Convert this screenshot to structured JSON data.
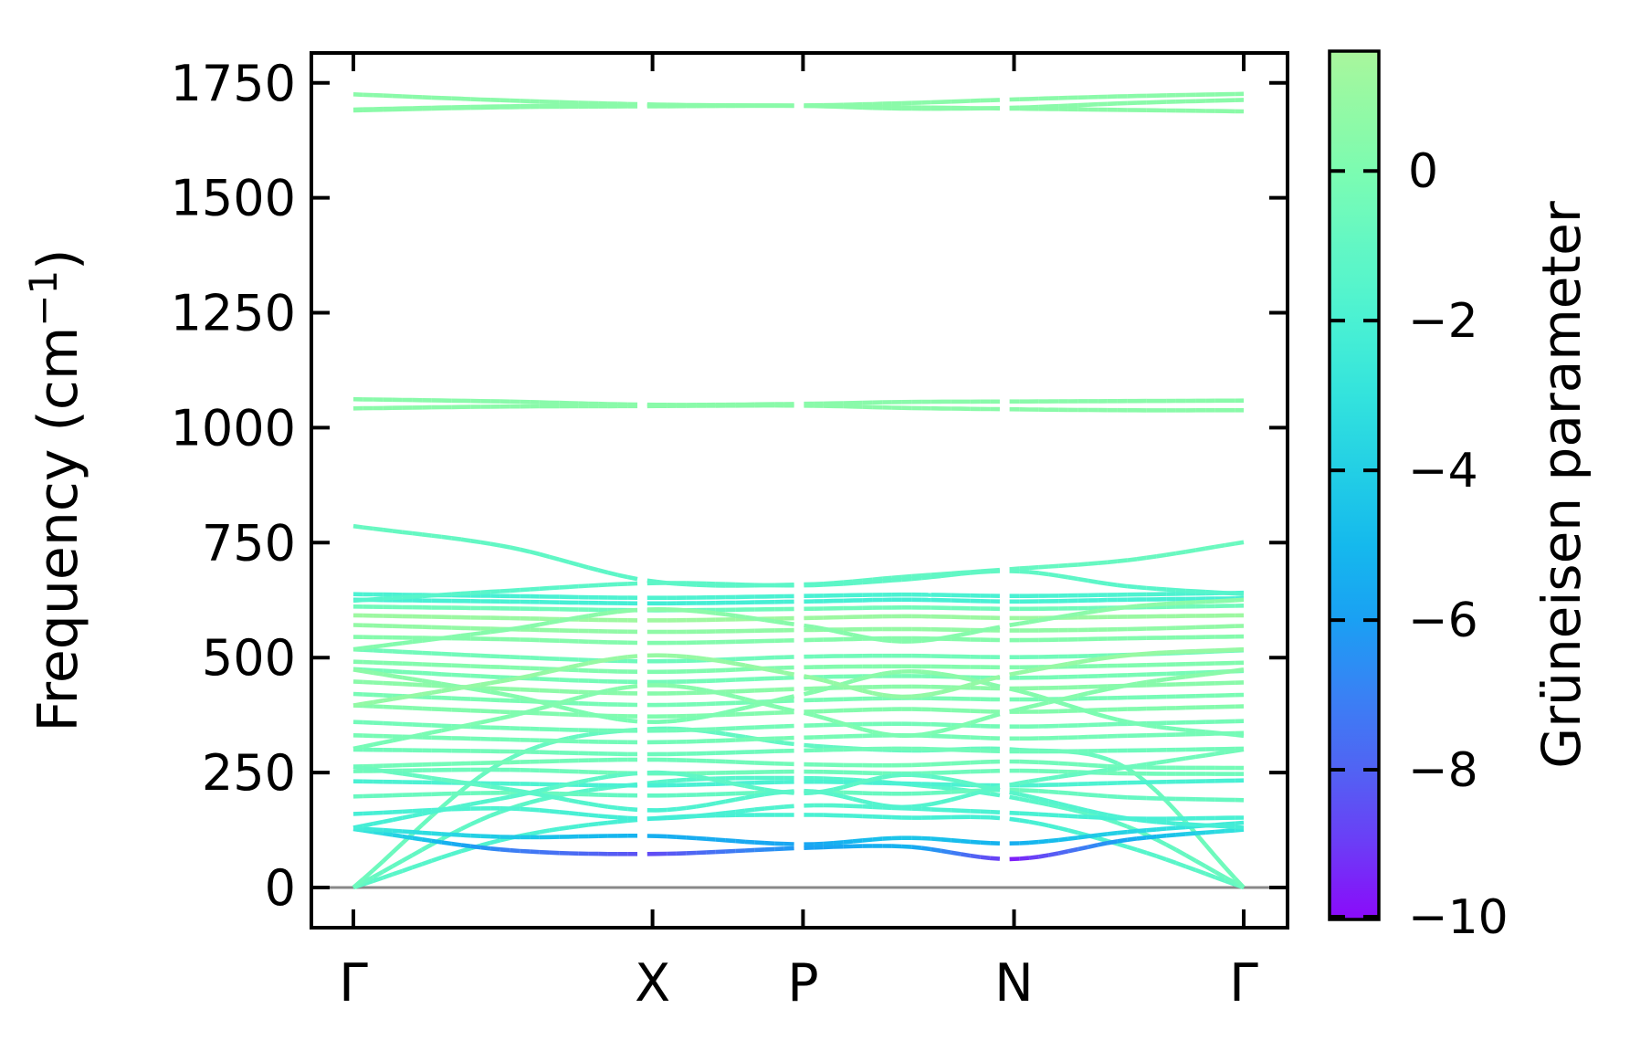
{
  "figure": {
    "background": "#ffffff",
    "axis_color": "#000000",
    "zero_line_color": "#888888",
    "ylabel_prefix": "Frequency (cm",
    "ylabel_sup": "−1",
    "ylabel_suffix": ")",
    "colorbar_label": "Grüneisen parameter",
    "y_tick_labels": [
      "0",
      "250",
      "500",
      "750",
      "1000",
      "1250",
      "1500",
      "1750"
    ],
    "x_tick_labels": [
      "Γ",
      "X",
      "P",
      "N",
      "Γ"
    ],
    "cb_tick_labels": [
      "0",
      "−2",
      "−4",
      "−6",
      "−8",
      "−10"
    ]
  },
  "chart_data": {
    "type": "line",
    "title": "",
    "xlabel": "",
    "ylabel": "Frequency (cm⁻¹)",
    "x_tick_labels": [
      "Γ",
      "X",
      "P",
      "N",
      "Γ"
    ],
    "x_tick_positions": [
      0.0,
      0.336,
      0.505,
      0.742,
      1.0
    ],
    "y_ticks": [
      0,
      250,
      500,
      750,
      1000,
      1250,
      1500,
      1750
    ],
    "ylim": [
      -87,
      1815
    ],
    "zero_line": 0,
    "grid": false,
    "colorbar": {
      "label": "Grüneisen parameter",
      "ticks": [
        0,
        -2,
        -4,
        -6,
        -8,
        -10
      ],
      "vmin": -10,
      "vmax": 1.6,
      "stops": [
        [
          1.6,
          "#a9f69c"
        ],
        [
          1.0,
          "#97f9a3"
        ],
        [
          0.5,
          "#8afaa9"
        ],
        [
          0.0,
          "#7cfcb1"
        ],
        [
          -0.5,
          "#70fabb"
        ],
        [
          -1.0,
          "#62f7c4"
        ],
        [
          -1.5,
          "#57f5cb"
        ],
        [
          -2.0,
          "#4af1d3"
        ],
        [
          -3.0,
          "#33e3dd"
        ],
        [
          -4.0,
          "#23cfe5"
        ],
        [
          -5.0,
          "#15b9ed"
        ],
        [
          -6.0,
          "#1aa0f3"
        ],
        [
          -7.0,
          "#3981f4"
        ],
        [
          -8.0,
          "#5163f3"
        ],
        [
          -9.0,
          "#6c3cf6"
        ],
        [
          -10.0,
          "#8b0afa"
        ]
      ]
    },
    "segment_gap_before": [
      0.336,
      0.505,
      0.742
    ],
    "band_t": [
      0.0,
      0.17,
      0.336,
      0.505,
      0.62,
      0.742,
      0.87,
      1.0
    ],
    "bands": [
      {
        "f": [
          0,
          105,
          150,
          158,
          152,
          148,
          88,
          0
        ],
        "g": [
          -1.2,
          -1.8,
          -2.2,
          -2.0,
          -2.1,
          -2.2,
          -1.6,
          -1.0
        ]
      },
      {
        "f": [
          0,
          168,
          228,
          238,
          225,
          195,
          132,
          0
        ],
        "g": [
          -0.8,
          -1.2,
          -1.5,
          -1.6,
          -1.5,
          -1.4,
          -1.0,
          -0.7
        ]
      },
      {
        "f": [
          0,
          275,
          345,
          310,
          298,
          300,
          258,
          0
        ],
        "g": [
          -0.6,
          -0.8,
          -0.9,
          -1.0,
          -0.9,
          -0.8,
          -0.7,
          -0.5
        ]
      },
      {
        "f": [
          127,
          82,
          73,
          86,
          89,
          62,
          104,
          126
        ],
        "g": [
          -2.6,
          -7.0,
          -8.6,
          -6.0,
          -5.2,
          -9.6,
          -5.6,
          -2.8
        ]
      },
      {
        "f": [
          129,
          110,
          112,
          94,
          108,
          96,
          121,
          141
        ],
        "g": [
          -2.4,
          -4.3,
          -5.4,
          -5.8,
          -4.4,
          -5.4,
          -3.8,
          -2.2
        ]
      },
      {
        "f": [
          160,
          172,
          150,
          178,
          172,
          162,
          150,
          152
        ],
        "g": [
          -2.2,
          -1.8,
          -2.4,
          -1.6,
          -1.8,
          -2.0,
          -2.2,
          -2.0
        ]
      },
      {
        "f": [
          198,
          206,
          200,
          208,
          204,
          212,
          196,
          190
        ],
        "g": [
          -0.8,
          -0.6,
          -1.0,
          -0.7,
          -0.8,
          -0.6,
          -0.9,
          -0.8
        ]
      },
      {
        "f": [
          231,
          226,
          222,
          230,
          226,
          222,
          228,
          233
        ],
        "g": [
          -2.0,
          -1.8,
          -2.1,
          -1.9,
          -2.0,
          -1.8,
          -1.9,
          -2.1
        ]
      },
      {
        "f": [
          253,
          256,
          248,
          252,
          248,
          254,
          248,
          247
        ],
        "g": [
          -0.5,
          -0.6,
          -0.4,
          -0.5,
          -0.6,
          -0.5,
          -0.4,
          -0.5
        ]
      },
      {
        "f": [
          263,
          272,
          278,
          268,
          266,
          274,
          262,
          260
        ],
        "g": [
          -0.4,
          -0.3,
          -0.5,
          -0.4,
          -0.3,
          -0.4,
          -0.5,
          -0.3
        ]
      },
      {
        "f": [
          130,
          195,
          250,
          205,
          245,
          205,
          150,
          130
        ],
        "g": [
          -2.3,
          -1.5,
          -1.0,
          -1.4,
          -1.1,
          -1.4,
          -2.0,
          -2.3
        ]
      },
      {
        "f": [
          263,
          215,
          168,
          210,
          175,
          225,
          262,
          300
        ],
        "g": [
          -0.6,
          -1.2,
          -2.0,
          -1.3,
          -1.8,
          -1.2,
          -0.6,
          -0.4
        ]
      },
      {
        "f": [
          300,
          296,
          290,
          298,
          302,
          296,
          298,
          302
        ],
        "g": [
          -0.5,
          -0.4,
          -0.6,
          -0.5,
          -0.4,
          -0.5,
          -0.6,
          -0.4
        ]
      },
      {
        "f": [
          331,
          322,
          316,
          326,
          331,
          324,
          330,
          336
        ],
        "g": [
          -0.2,
          -0.3,
          -0.4,
          -0.2,
          -0.3,
          -0.2,
          -0.4,
          -0.2
        ]
      },
      {
        "f": [
          360,
          347,
          341,
          352,
          356,
          350,
          356,
          362
        ],
        "g": [
          -0.4,
          -0.3,
          -0.5,
          -0.3,
          -0.4,
          -0.3,
          -0.4,
          -0.3
        ]
      },
      {
        "f": [
          396,
          382,
          372,
          382,
          388,
          382,
          388,
          394
        ],
        "g": [
          0.3,
          0.2,
          0.1,
          0.3,
          0.2,
          0.3,
          0.2,
          0.3
        ]
      },
      {
        "f": [
          421,
          407,
          397,
          407,
          412,
          409,
          413,
          419
        ],
        "g": [
          -0.2,
          -0.1,
          -0.3,
          -0.2,
          -0.1,
          -0.2,
          -0.3,
          -0.1
        ]
      },
      {
        "f": [
          448,
          432,
          422,
          432,
          437,
          433,
          439,
          446
        ],
        "g": [
          0.5,
          0.7,
          0.4,
          0.6,
          0.5,
          0.6,
          0.4,
          0.5
        ]
      },
      {
        "f": [
          475,
          457,
          447,
          457,
          460,
          456,
          462,
          471
        ],
        "g": [
          -0.3,
          -0.2,
          -0.4,
          -0.3,
          -0.2,
          -0.3,
          -0.2,
          -0.3
        ]
      },
      {
        "f": [
          491,
          479,
          469,
          479,
          481,
          479,
          483,
          489
        ],
        "g": [
          0.2,
          0.3,
          0.1,
          0.2,
          0.3,
          0.2,
          0.1,
          0.2
        ]
      },
      {
        "f": [
          518,
          502,
          492,
          502,
          504,
          501,
          506,
          516
        ],
        "g": [
          -0.5,
          -0.4,
          -0.6,
          -0.5,
          -0.4,
          -0.5,
          -0.4,
          -0.5
        ]
      },
      {
        "f": [
          302,
          370,
          440,
          380,
          330,
          385,
          440,
          474
        ],
        "g": [
          -0.3,
          0.1,
          0.4,
          0.2,
          -0.1,
          0.2,
          0.4,
          0.5
        ]
      },
      {
        "f": [
          474,
          420,
          360,
          420,
          470,
          430,
          360,
          330
        ],
        "g": [
          0.6,
          0.3,
          -0.2,
          0.3,
          0.6,
          0.4,
          -0.2,
          -0.3
        ]
      },
      {
        "f": [
          396,
          450,
          505,
          460,
          415,
          465,
          505,
          518
        ],
        "g": [
          0.8,
          0.9,
          1.0,
          0.9,
          0.8,
          0.9,
          1.0,
          0.9
        ]
      },
      {
        "f": [
          545,
          540,
          532,
          538,
          542,
          538,
          542,
          546
        ],
        "g": [
          0.3,
          0.4,
          0.2,
          0.3,
          0.4,
          0.3,
          0.2,
          0.3
        ]
      },
      {
        "f": [
          571,
          562,
          556,
          560,
          562,
          559,
          562,
          569
        ],
        "g": [
          0.8,
          0.9,
          0.7,
          0.8,
          0.9,
          0.8,
          0.7,
          0.8
        ]
      },
      {
        "f": [
          592,
          586,
          581,
          586,
          590,
          586,
          589,
          592
        ],
        "g": [
          1.2,
          1.1,
          1.3,
          1.2,
          1.1,
          1.2,
          1.1,
          1.2
        ]
      },
      {
        "f": [
          611,
          607,
          603,
          606,
          609,
          606,
          609,
          613
        ],
        "g": [
          -0.5,
          -0.4,
          -0.6,
          -0.5,
          -0.4,
          -0.5,
          -0.4,
          -0.5
        ]
      },
      {
        "f": [
          626,
          622,
          618,
          622,
          626,
          622,
          626,
          629
        ],
        "g": [
          -2.2,
          -2.0,
          -2.3,
          -2.1,
          -2.2,
          -2.0,
          -2.1,
          -2.2
        ]
      },
      {
        "f": [
          638,
          634,
          630,
          634,
          637,
          634,
          637,
          641
        ],
        "g": [
          -1.9,
          -2.1,
          -1.8,
          -2.0,
          -1.9,
          -2.0,
          -1.8,
          -1.9
        ]
      },
      {
        "f": [
          518,
          560,
          605,
          570,
          535,
          572,
          610,
          626
        ],
        "g": [
          0.2,
          0.4,
          0.6,
          0.4,
          0.3,
          0.4,
          0.6,
          0.5
        ]
      },
      {
        "f": [
          786,
          742,
          666,
          659,
          676,
          693,
          712,
          751
        ],
        "g": [
          -0.8,
          -1.0,
          -1.3,
          -1.2,
          -1.0,
          -0.9,
          -0.8,
          -0.7
        ]
      },
      {
        "f": [
          624,
          645,
          662,
          657,
          670,
          688,
          655,
          638
        ],
        "g": [
          -1.6,
          -1.4,
          -1.2,
          -1.3,
          -1.1,
          -1.0,
          -1.4,
          -1.6
        ]
      },
      {
        "f": [
          1062,
          1057,
          1050,
          1052,
          1056,
          1057,
          1058,
          1059
        ],
        "g": [
          0.45,
          0.45,
          0.45,
          0.45,
          0.45,
          0.45,
          0.45,
          0.45
        ]
      },
      {
        "f": [
          1042,
          1046,
          1047,
          1048,
          1043,
          1040,
          1038,
          1038
        ],
        "g": [
          0.5,
          0.5,
          0.5,
          0.5,
          0.5,
          0.5,
          0.5,
          0.5
        ]
      },
      {
        "f": [
          1725,
          1712,
          1703,
          1701,
          1706,
          1714,
          1721,
          1726
        ],
        "g": [
          0.5,
          0.5,
          0.5,
          0.5,
          0.5,
          0.5,
          0.5,
          0.5
        ]
      },
      {
        "f": [
          1690,
          1697,
          1699,
          1700,
          1697,
          1694,
          1691,
          1688
        ],
        "g": [
          0.55,
          0.55,
          0.55,
          0.55,
          0.55,
          0.55,
          0.55,
          0.55
        ]
      },
      {
        "f": [
          1692,
          1699,
          1701,
          1700,
          1694,
          1696,
          1706,
          1713
        ],
        "g": [
          0.5,
          0.5,
          0.5,
          0.5,
          0.5,
          0.5,
          0.5,
          0.5
        ]
      }
    ]
  }
}
